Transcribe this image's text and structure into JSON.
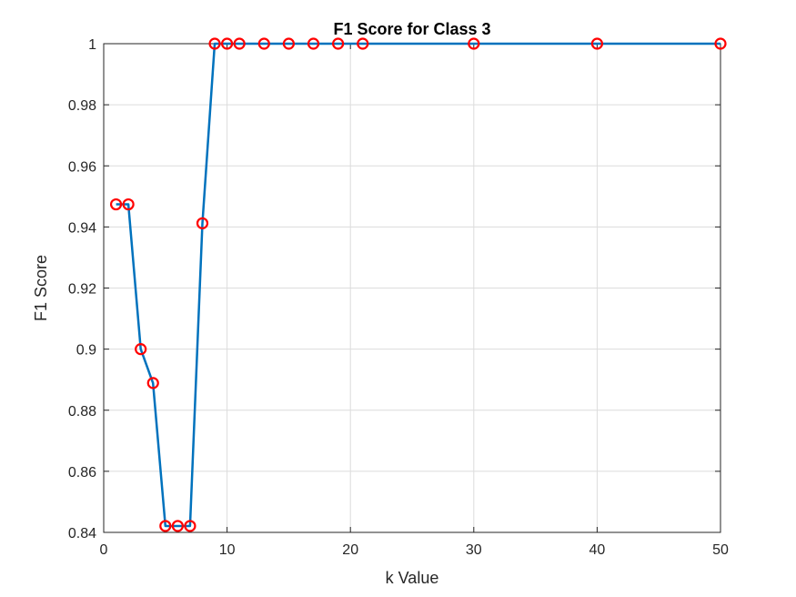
{
  "chart_data": {
    "type": "line",
    "title": "F1 Score for Class 3",
    "xlabel": "k Value",
    "ylabel": "F1 Score",
    "xlim": [
      0,
      50
    ],
    "ylim": [
      0.84,
      1
    ],
    "grid": true,
    "x_ticks": [
      0,
      10,
      20,
      30,
      40,
      50
    ],
    "y_ticks": [
      0.84,
      0.86,
      0.88,
      0.9,
      0.92,
      0.94,
      0.96,
      0.98,
      1
    ],
    "x_tick_labels": [
      "0",
      "10",
      "20",
      "30",
      "40",
      "50"
    ],
    "y_tick_labels": [
      "0.84",
      "0.86",
      "0.88",
      "0.9",
      "0.92",
      "0.94",
      "0.96",
      "0.98",
      "1"
    ],
    "series": [
      {
        "line_color": "#0072BD",
        "marker": "circle",
        "marker_color": "#FF0000",
        "x": [
          1,
          2,
          3,
          4,
          5,
          6,
          7,
          8,
          9,
          10,
          11,
          13,
          15,
          17,
          19,
          21,
          30,
          40,
          50
        ],
        "y": [
          0.9474,
          0.9474,
          0.9,
          0.8889,
          0.8421,
          0.8421,
          0.8421,
          0.9412,
          1,
          1,
          1,
          1,
          1,
          1,
          1,
          1,
          1,
          1,
          1
        ]
      }
    ]
  }
}
